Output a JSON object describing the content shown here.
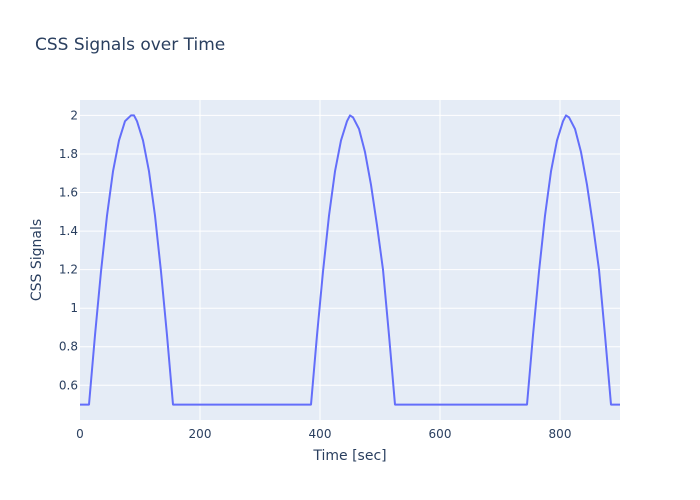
{
  "chart_data": {
    "type": "line",
    "title": "CSS Signals over Time",
    "xlabel": "Time [sec]",
    "ylabel": "CSS Signals",
    "xlim": [
      0,
      900
    ],
    "ylim": [
      0.42,
      2.08
    ],
    "x_ticks": [
      0,
      200,
      400,
      600,
      800
    ],
    "y_ticks": [
      0.6,
      0.8,
      1,
      1.2,
      1.4,
      1.6,
      1.8,
      2
    ],
    "grid": true,
    "legend": "none",
    "colors": {
      "line": "#636efa",
      "plot_bg": "#e5ecf6",
      "grid": "#ffffff",
      "text": "#2a3f5f"
    },
    "series": [
      {
        "x": [
          0,
          15,
          25,
          35,
          45,
          55,
          65,
          75,
          85,
          90,
          95,
          105,
          115,
          125,
          135,
          145,
          155,
          165,
          375,
          385,
          395,
          405,
          415,
          425,
          435,
          445,
          450,
          455,
          465,
          475,
          485,
          495,
          505,
          515,
          525,
          735,
          745,
          755,
          765,
          775,
          785,
          795,
          805,
          810,
          815,
          825,
          835,
          845,
          855,
          865,
          875,
          885,
          900
        ],
        "y": [
          0.5,
          0.5,
          0.86,
          1.19,
          1.48,
          1.71,
          1.87,
          1.97,
          2.0,
          2.0,
          1.97,
          1.87,
          1.71,
          1.48,
          1.19,
          0.86,
          0.5,
          0.5,
          0.5,
          0.5,
          0.86,
          1.19,
          1.48,
          1.71,
          1.87,
          1.97,
          2.0,
          1.99,
          1.93,
          1.81,
          1.64,
          1.43,
          1.2,
          0.86,
          0.5,
          0.5,
          0.5,
          0.86,
          1.19,
          1.48,
          1.71,
          1.87,
          1.97,
          2.0,
          1.99,
          1.93,
          1.81,
          1.64,
          1.43,
          1.2,
          0.86,
          0.5,
          0.5
        ]
      }
    ]
  }
}
